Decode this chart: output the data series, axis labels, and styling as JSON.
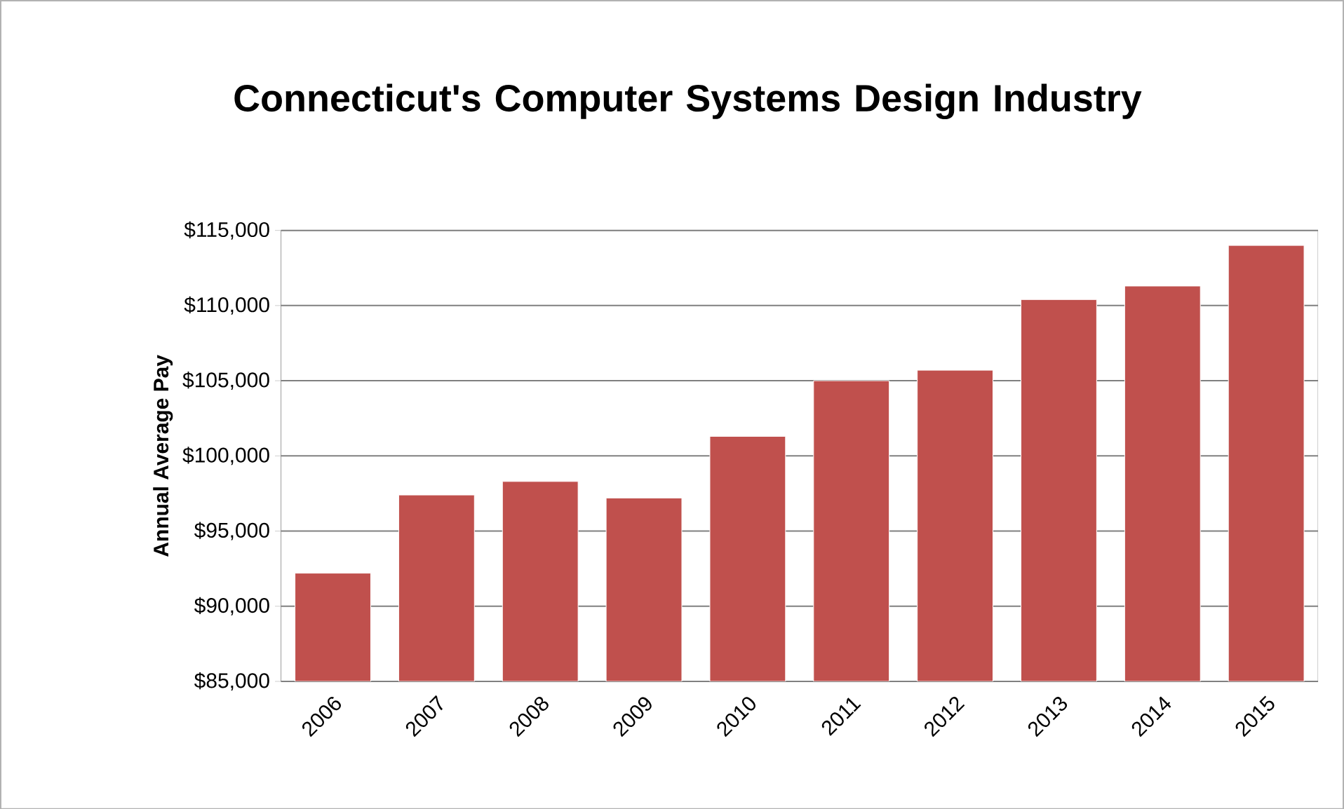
{
  "chart_data": {
    "type": "bar",
    "title": "Connecticut's Computer Systems Design Industry",
    "ylabel": "Annual Average Pay",
    "categories": [
      "2006",
      "2007",
      "2008",
      "2009",
      "2010",
      "2011",
      "2012",
      "2013",
      "2014",
      "2015"
    ],
    "values": [
      92200,
      97400,
      98300,
      97200,
      101300,
      105000,
      105700,
      110400,
      111300,
      114000
    ],
    "color": "#c0504d",
    "ylim": [
      85000,
      115000
    ],
    "yticks": [
      {
        "value": 85000,
        "label": "$85,000"
      },
      {
        "value": 90000,
        "label": "$90,000"
      },
      {
        "value": 95000,
        "label": "$95,000"
      },
      {
        "value": 100000,
        "label": "$100,000"
      },
      {
        "value": 105000,
        "label": "$105,000"
      },
      {
        "value": 110000,
        "label": "$110,000"
      },
      {
        "value": 115000,
        "label": "$115,000"
      }
    ],
    "grid": "y"
  }
}
